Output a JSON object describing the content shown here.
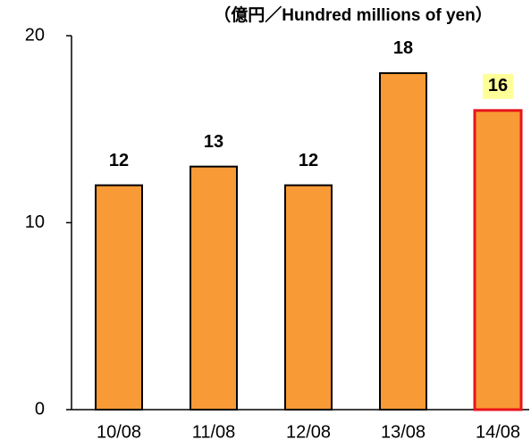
{
  "chart_data": {
    "type": "bar",
    "unit_label": "（億円／Hundred millions of yen）",
    "categories": [
      "10/08",
      "11/08",
      "12/08",
      "13/08",
      "14/08"
    ],
    "values": [
      12,
      13,
      12,
      18,
      16
    ],
    "color": "#f89a35",
    "edge_color": "#000000",
    "highlight": {
      "index": 4,
      "edge_color": "#e8141c",
      "label_background": "#ffff99"
    },
    "ylim": [
      0,
      20
    ],
    "yticks": [
      0,
      10,
      20
    ],
    "grid": false
  }
}
